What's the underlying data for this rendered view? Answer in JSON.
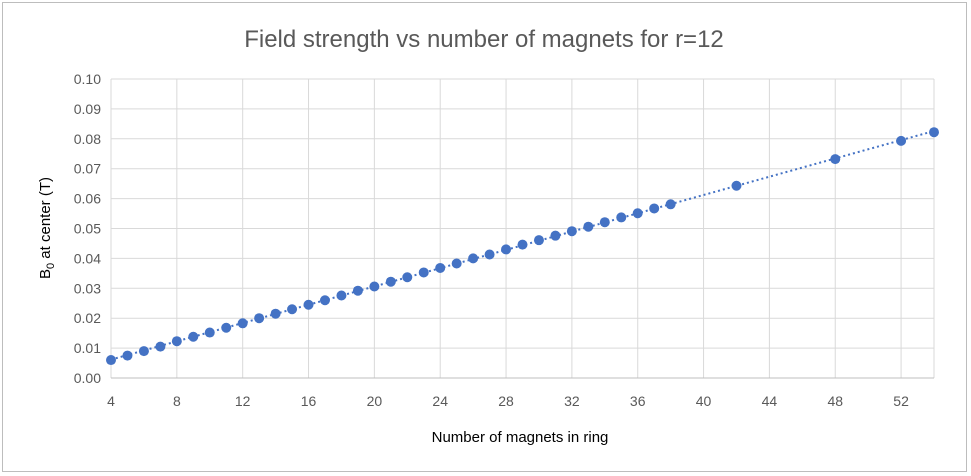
{
  "chart_data": {
    "type": "scatter",
    "title": "Field strength vs number of magnets for r=12",
    "xlabel": "Number of magnets in ring",
    "ylabel": {
      "base": "B",
      "subscript": "0",
      "rest": " at center (T)"
    },
    "xlim": [
      4,
      54
    ],
    "ylim": [
      0,
      0.1
    ],
    "xticks": [
      "4",
      "8",
      "12",
      "16",
      "20",
      "24",
      "28",
      "32",
      "36",
      "40",
      "44",
      "48",
      "52"
    ],
    "yticks": [
      "0.00",
      "0.01",
      "0.02",
      "0.03",
      "0.04",
      "0.05",
      "0.06",
      "0.07",
      "0.08",
      "0.09",
      "0.10"
    ],
    "grid": true,
    "trendline": "linear, dotted",
    "marker_color": "#4472C4",
    "series": [
      {
        "x": [
          4,
          5,
          6,
          7,
          8,
          9,
          10,
          11,
          12,
          13,
          14,
          15,
          16,
          17,
          18,
          19,
          20,
          21,
          22,
          23,
          24,
          25,
          26,
          27,
          28,
          29,
          30,
          31,
          32,
          33,
          34,
          35,
          36,
          37,
          38,
          42,
          48,
          52,
          54
        ],
        "y": [
          0.006,
          0.0075,
          0.009,
          0.0105,
          0.0123,
          0.0138,
          0.0152,
          0.0168,
          0.0183,
          0.02,
          0.0215,
          0.023,
          0.0245,
          0.026,
          0.0276,
          0.0292,
          0.0306,
          0.0322,
          0.0337,
          0.0353,
          0.0368,
          0.0383,
          0.04,
          0.0413,
          0.043,
          0.0446,
          0.0461,
          0.0476,
          0.0491,
          0.0506,
          0.0521,
          0.0537,
          0.0551,
          0.0567,
          0.0581,
          0.0643,
          0.0732,
          0.0793,
          0.0822
        ]
      }
    ]
  }
}
